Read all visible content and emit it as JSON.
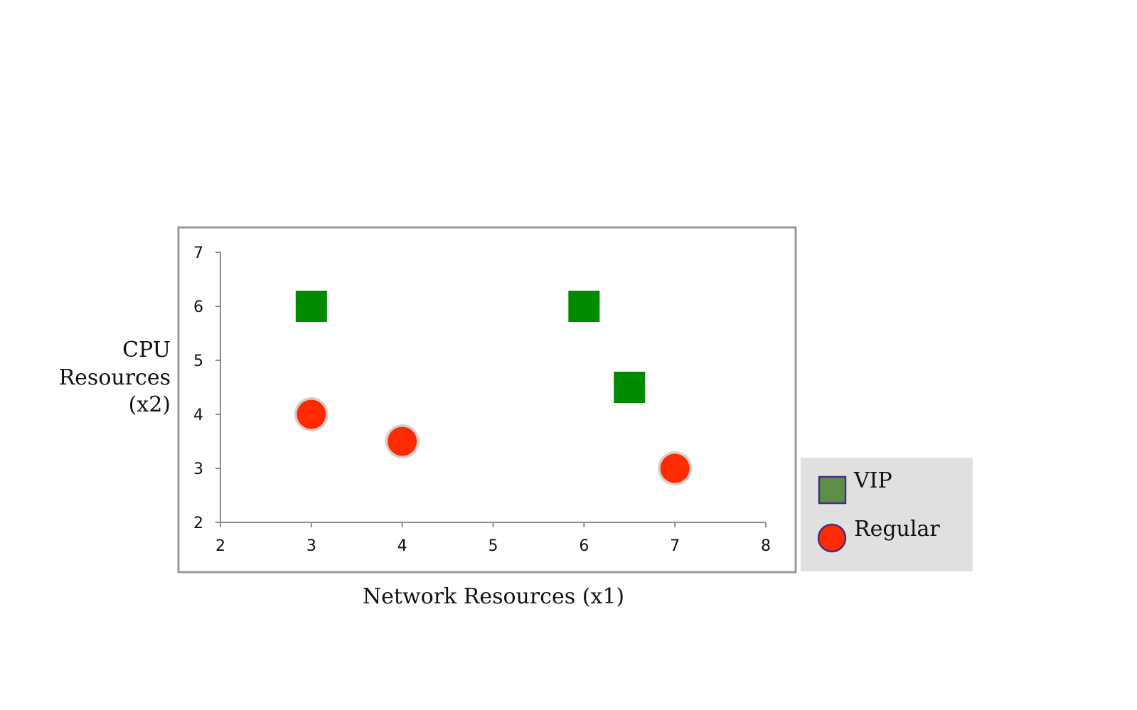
{
  "chart_data": {
    "type": "scatter",
    "xlabel": "Network Resources (x1)",
    "ylabel": [
      "CPU",
      "Resources",
      "(x2)"
    ],
    "xlim": [
      2,
      8
    ],
    "ylim": [
      2,
      7
    ],
    "xticks": [
      "2",
      "3",
      "4",
      "5",
      "6",
      "7",
      "8"
    ],
    "yticks": [
      "2",
      "3",
      "4",
      "5",
      "6",
      "7"
    ],
    "grid": false,
    "legend_position": "bottom-right, outside plot",
    "series": [
      {
        "name": "VIP",
        "marker": "square",
        "color": "#008a00",
        "legend_color": "#5e8f46",
        "points": [
          {
            "x": 3,
            "y": 6
          },
          {
            "x": 6,
            "y": 6
          },
          {
            "x": 6.5,
            "y": 4.5
          }
        ]
      },
      {
        "name": "Regular",
        "marker": "circle",
        "color": "#ff2a00",
        "legend_color": "#ff2a00",
        "points": [
          {
            "x": 3,
            "y": 4
          },
          {
            "x": 4,
            "y": 3.5
          },
          {
            "x": 7,
            "y": 3
          }
        ]
      }
    ]
  }
}
